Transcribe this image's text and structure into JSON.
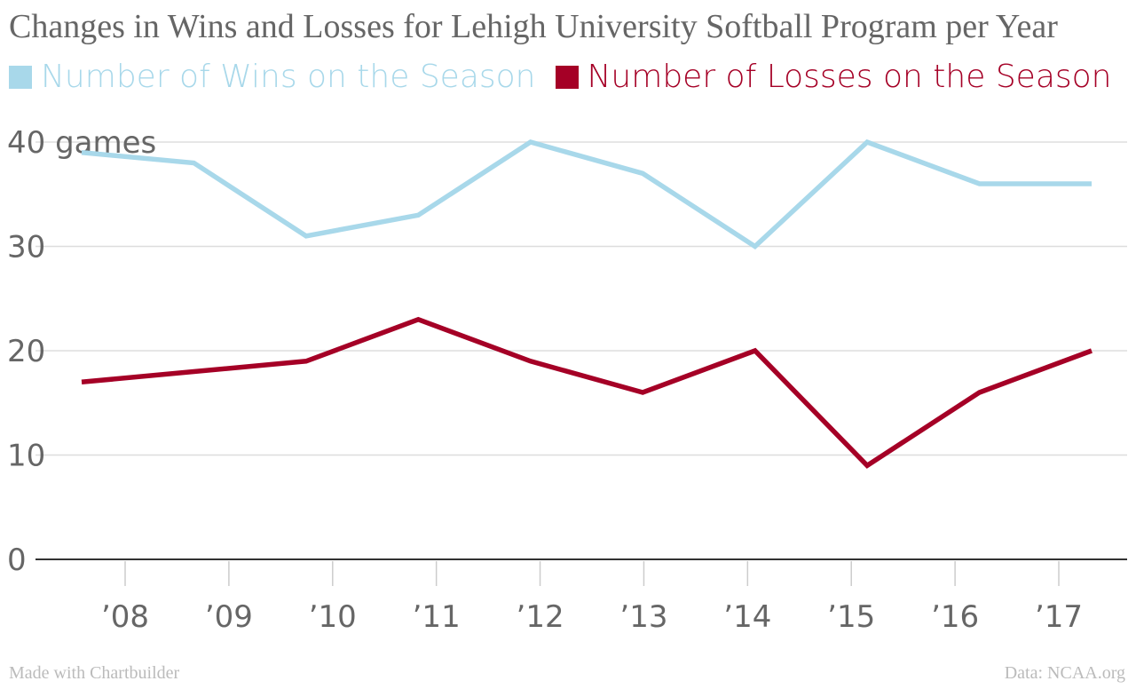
{
  "chart_data": {
    "type": "line",
    "title": "Changes in Wins and Losses for Lehigh University Softball Program per Year",
    "categories": [
      "’08",
      "’09",
      "’10",
      "’11",
      "’12",
      "’13",
      "’14",
      "’15",
      "’16",
      "’17"
    ],
    "x_ticks": [
      "’08",
      "’09",
      "’10",
      "’11",
      "’12",
      "’13",
      "’14",
      "’15",
      "’16",
      "’17"
    ],
    "y_ticks": [
      0,
      10,
      20,
      30,
      40
    ],
    "y_unit": "games",
    "ylim": [
      0,
      40
    ],
    "grid": true,
    "legend_position": "top-left",
    "series": [
      {
        "name": "Number of Wins on the Season",
        "color": "#a8d8ea",
        "values": [
          39,
          38,
          31,
          33,
          40,
          37,
          30,
          40,
          36,
          36
        ]
      },
      {
        "name": "Number of Losses on the Season",
        "color": "#a50026",
        "values": [
          17,
          18,
          19,
          23,
          19,
          16,
          20,
          9,
          16,
          20
        ]
      }
    ]
  },
  "footer": {
    "left": "Made with Chartbuilder",
    "right": "Data: NCAA.org"
  }
}
